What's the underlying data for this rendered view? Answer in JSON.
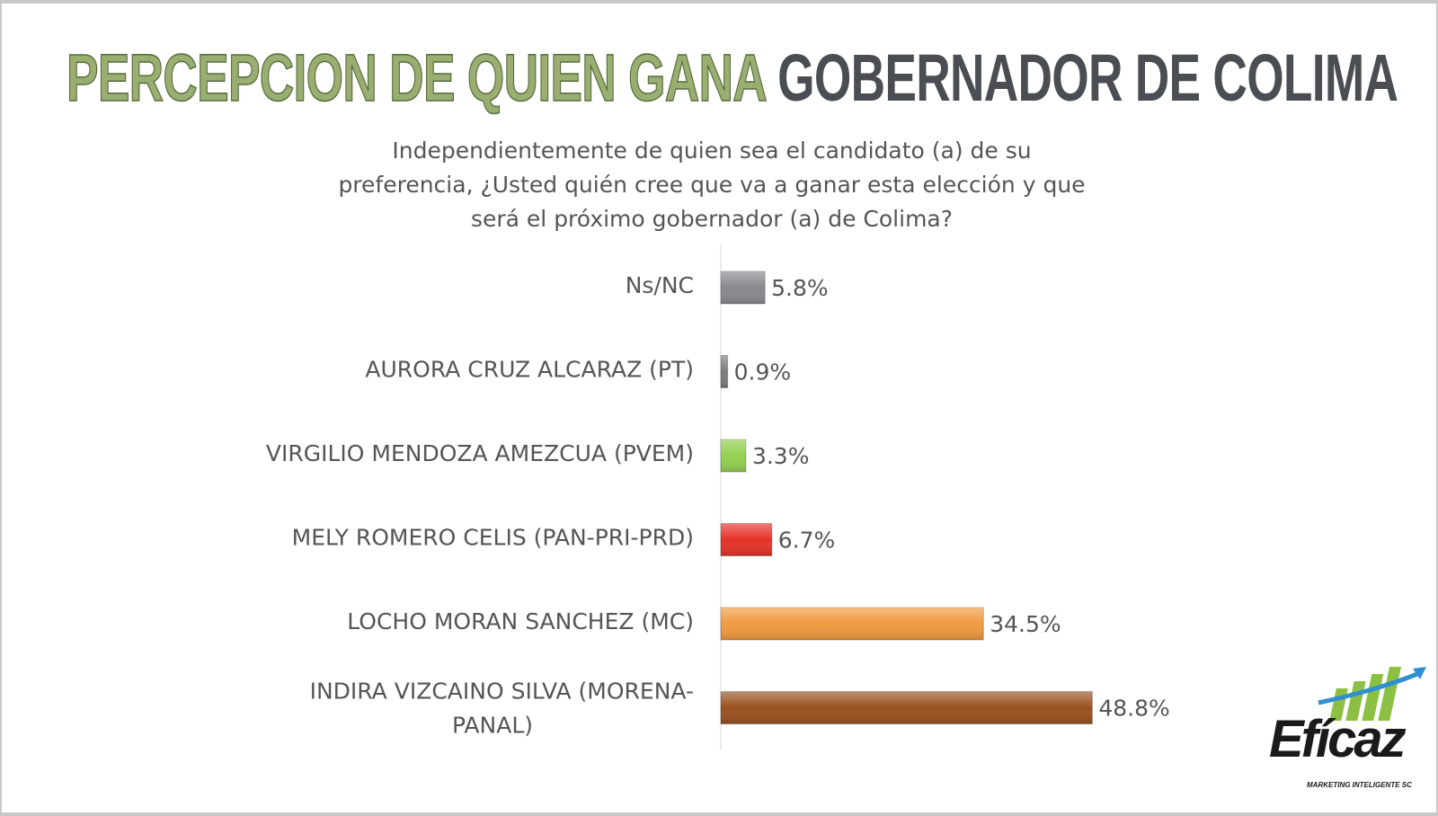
{
  "title": {
    "part1": "PERCEPCION DE QUIEN GANA",
    "part2": "GOBERNADOR DE COLIMA"
  },
  "subtitle": "Independientemente de quien sea el candidato (a) de su preferencia, ¿Usted quién cree que va a ganar esta elección y que será el próximo gobernador (a) de Colima?",
  "chart_data": {
    "type": "bar",
    "orientation": "horizontal",
    "categories": [
      "Ns/NC",
      "AURORA CRUZ ALCARAZ (PT)",
      "VIRGILIO MENDOZA AMEZCUA (PVEM)",
      "MELY ROMERO CELIS (PAN-PRI-PRD)",
      "LOCHO MORAN SANCHEZ (MC)",
      "INDIRA  VIZCAINO SILVA (MORENA-PANAL)"
    ],
    "category_lines": [
      [
        "Ns/NC"
      ],
      [
        "AURORA CRUZ ALCARAZ (PT)"
      ],
      [
        "VIRGILIO MENDOZA AMEZCUA (PVEM)"
      ],
      [
        "MELY ROMERO CELIS (PAN-PRI-PRD)"
      ],
      [
        "LOCHO MORAN SANCHEZ (MC)"
      ],
      [
        "INDIRA  VIZCAINO SILVA (MORENA-",
        "PANAL)"
      ]
    ],
    "values": [
      5.8,
      0.9,
      3.3,
      6.7,
      34.5,
      48.8
    ],
    "data_labels": [
      "5.8%",
      "0.9%",
      "3.3%",
      "6.7%",
      "34.5%",
      "48.8%"
    ],
    "colors": [
      "#8a898e",
      "#7d7d80",
      "#92d050",
      "#e53228",
      "#f09a40",
      "#9a5220"
    ],
    "unit": "%",
    "grid": false
  },
  "logo": {
    "text": "Efícaz",
    "tagline": "MARKETING INTELIGENTE SC"
  }
}
